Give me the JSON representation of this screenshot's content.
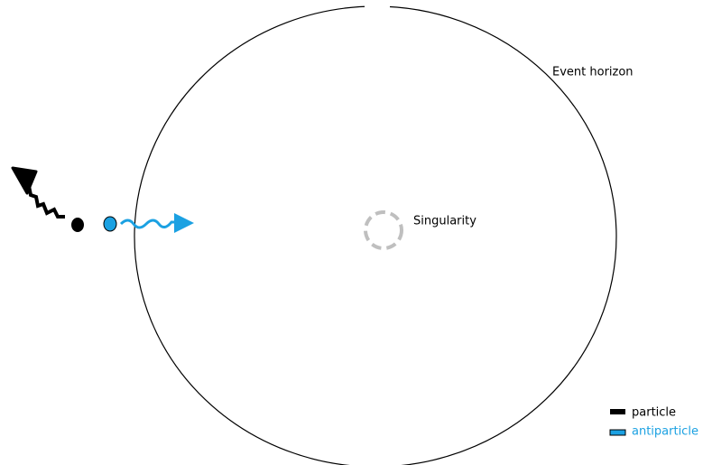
{
  "labels": {
    "event_horizon": "Event horizon",
    "singularity": "Singularity"
  },
  "legend": {
    "items": [
      "particle",
      "antiparticle"
    ]
  }
}
